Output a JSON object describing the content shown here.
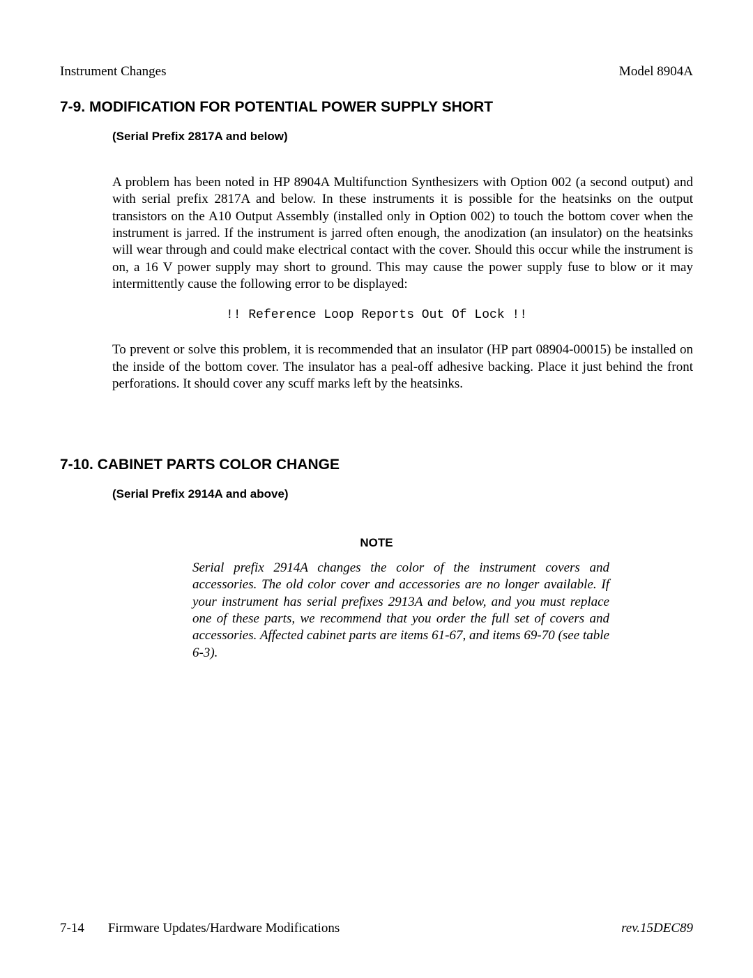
{
  "header": {
    "left": "Instrument Changes",
    "right": "Model 8904A"
  },
  "section1": {
    "heading": "7-9. MODIFICATION FOR POTENTIAL POWER SUPPLY SHORT",
    "subheading": "(Serial Prefix 2817A and below)",
    "para1": "A problem has been noted in HP 8904A Multifunction Synthesizers with Option 002 (a second output) and with serial prefix 2817A and below. In these instruments it is possible for the heatsinks on the output transistors on the A10 Output Assembly (installed only in Option 002) to touch the bottom cover when the instrument is jarred. If the instrument is jarred often enough, the anodization (an insulator) on the heatsinks will wear through and could make electrical contact with the cover. Should this occur while the instrument is on, a 16 V power supply may short to ground. This may cause the power supply fuse to blow or it may intermittently cause the following error to be displayed:",
    "code": "!! Reference Loop Reports Out Of Lock !!",
    "para2": "To prevent or solve this problem, it is recommended that an insulator (HP part 08904-00015) be installed on the inside of the bottom cover. The insulator has a peal-off adhesive backing. Place it just behind the front perforations. It should cover any scuff marks left by the heatsinks."
  },
  "section2": {
    "heading": "7-10. CABINET PARTS COLOR CHANGE",
    "subheading": "(Serial Prefix 2914A and above)",
    "note_label": "NOTE",
    "note_body": "Serial prefix 2914A changes the color of the instrument covers and accessories. The old color cover and accessories are no longer available. If your instrument has serial prefixes 2913A and below, and you must replace one of these parts, we recommend that you order the full set of covers and accessories. Affected cabinet parts are items 61-67, and items 69-70 (see table 6-3)."
  },
  "footer": {
    "page": "7-14",
    "title": "Firmware Updates/Hardware Modifications",
    "rev": "rev.15DEC89"
  }
}
